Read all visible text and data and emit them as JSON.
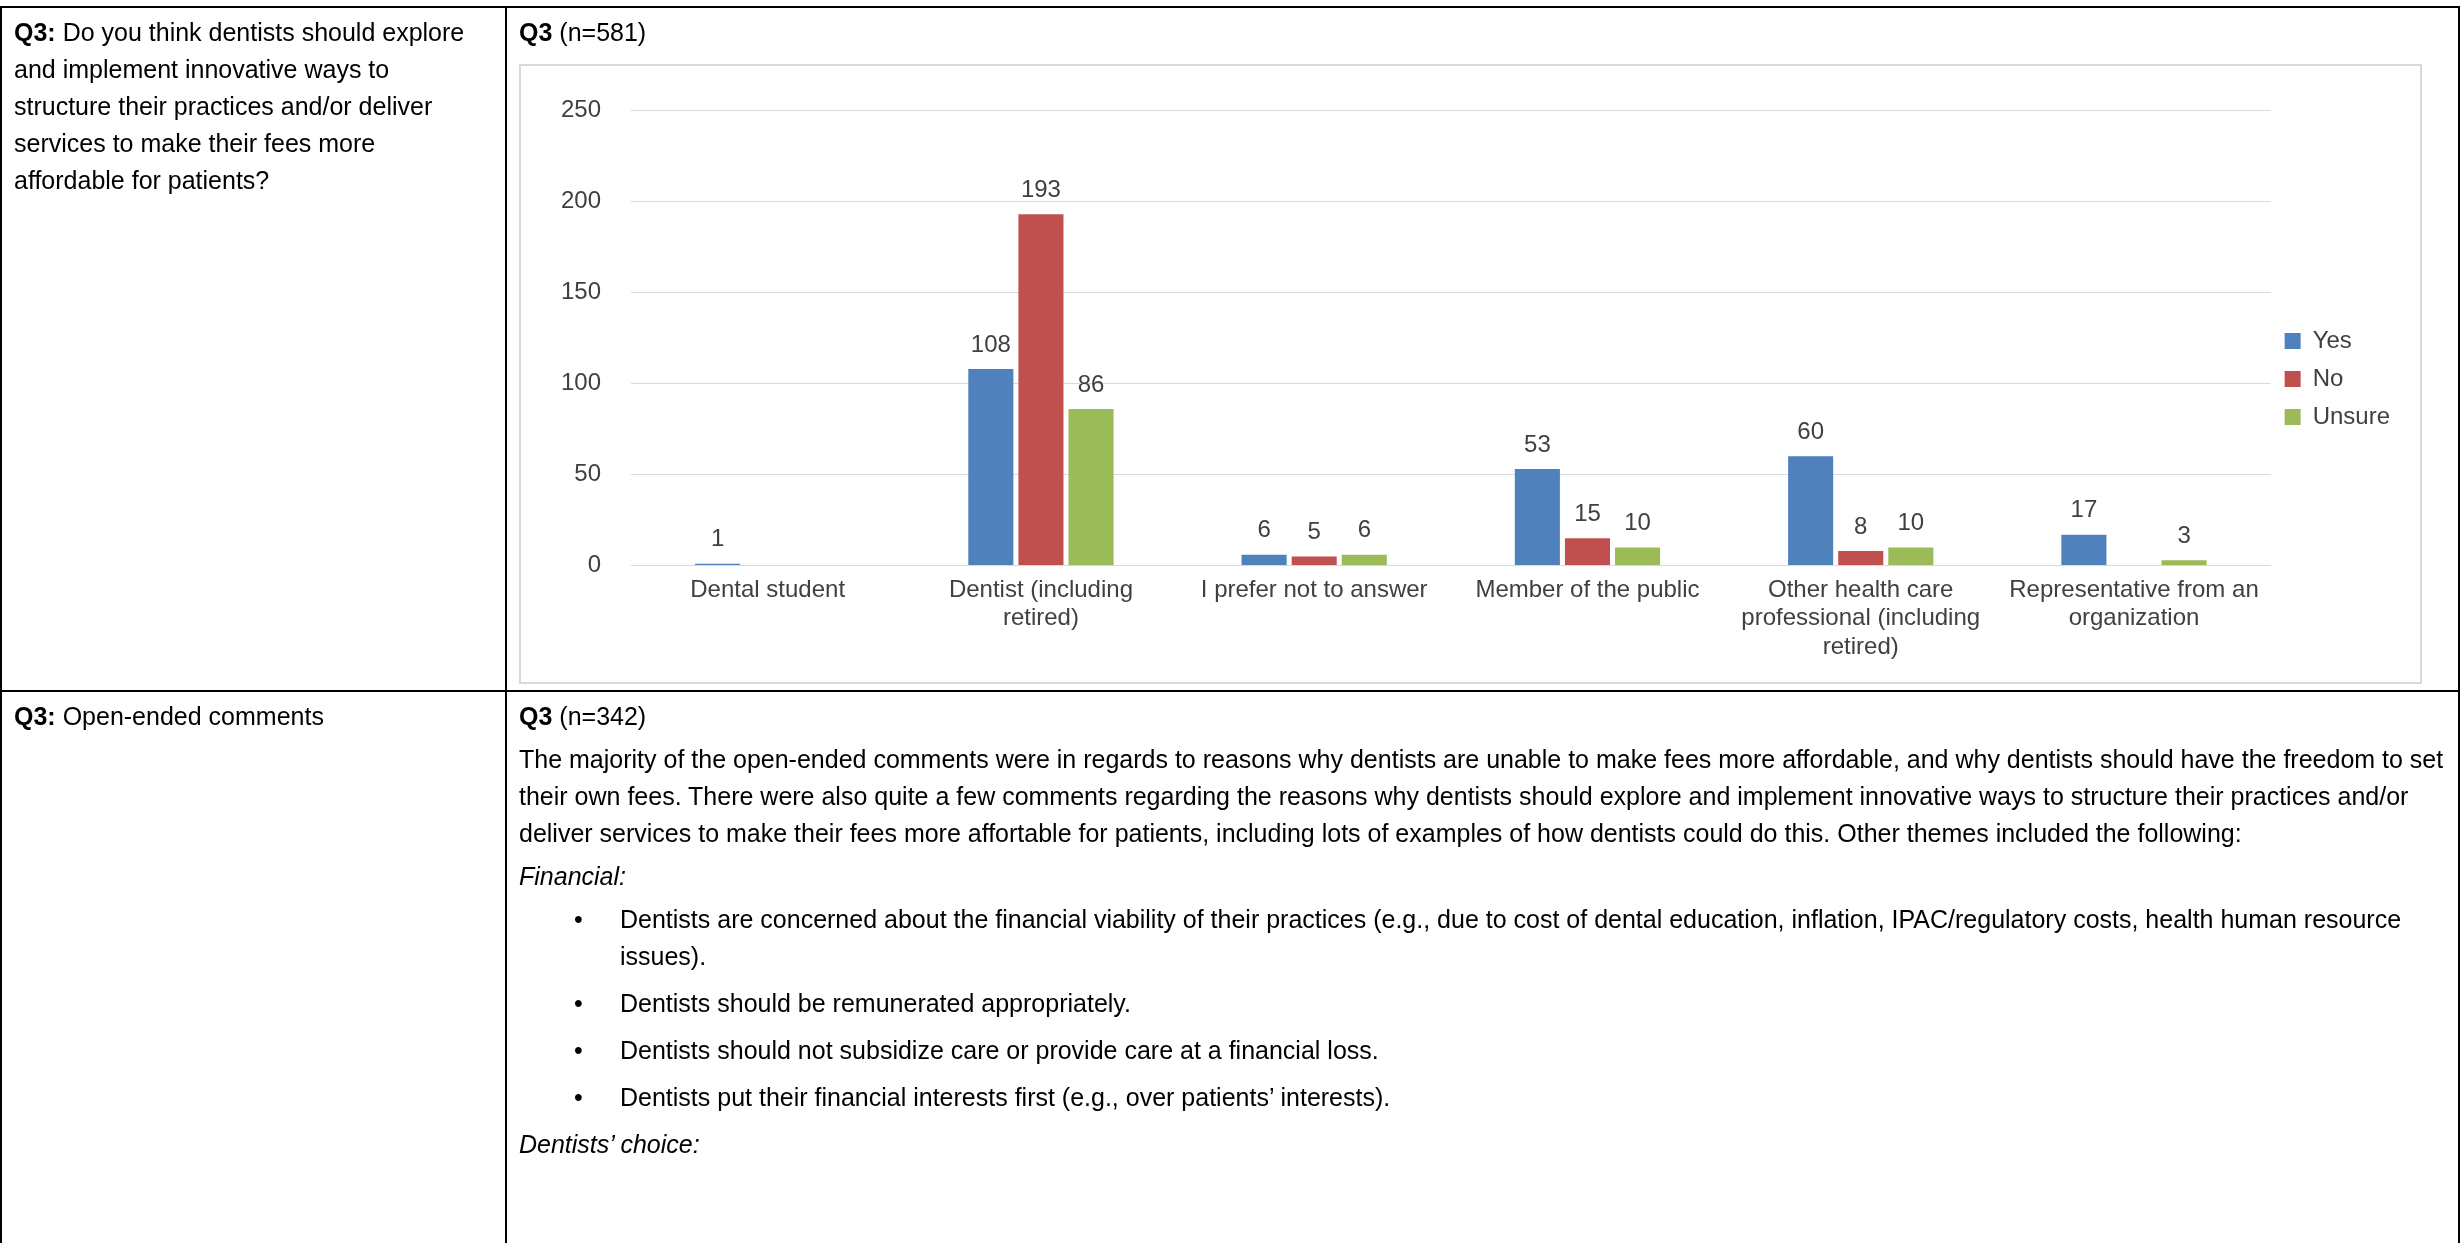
{
  "chart_data": {
    "type": "bar",
    "title": "Q3 (n=581)",
    "categories": [
      "Dental student",
      "Dentist (including retired)",
      "I prefer not to answer",
      "Member of the public",
      "Other health care professional (including retired)",
      "Representative from an organization"
    ],
    "series": [
      {
        "name": "Yes",
        "color": "#4f81bd",
        "values": [
          1,
          108,
          6,
          53,
          60,
          17
        ]
      },
      {
        "name": "No",
        "color": "#c0504d",
        "values": [
          null,
          193,
          5,
          15,
          8,
          null
        ]
      },
      {
        "name": "Unsure",
        "color": "#9bbb59",
        "values": [
          null,
          86,
          6,
          10,
          10,
          3
        ]
      }
    ],
    "ylim": [
      0,
      250
    ],
    "yticks": [
      0,
      50,
      100,
      150,
      200,
      250
    ],
    "grid": "y",
    "legend": "right",
    "data_labels": true,
    "annotations": [
      "Q3: Do you think dentists should explore and implement innovative ways to structure their practices and/or deliver services to make their fees more affordable for patients?",
      "Q3: Open-ended comments",
      "Q3 (n=342)",
      "The majority of the open-ended comments were in regards to reasons why dentists are unable to make fees more affordable, and why dentists should have the freedom to set their own fees. There were also quite a few comments regarding the reasons why dentists should explore and implement innovative ways to structure their practices and/or deliver services to make their fees more affortable for patients, including lots of examples of how dentists could do this. Other themes included the following:",
      "Financial:",
      "• Dentists are concerned about the financial viability of their practices (e.g., due to cost of dental education, inflation, IPAC/regulatory costs, health human resource issues).",
      "• Dentists should be remunerated appropriately.",
      "• Dentists should not subsidize care or provide care at a financial loss.",
      "• Dentists put their financial interests first (e.g., over patients’ interests).",
      "Dentists’ choice:"
    ]
  }
}
